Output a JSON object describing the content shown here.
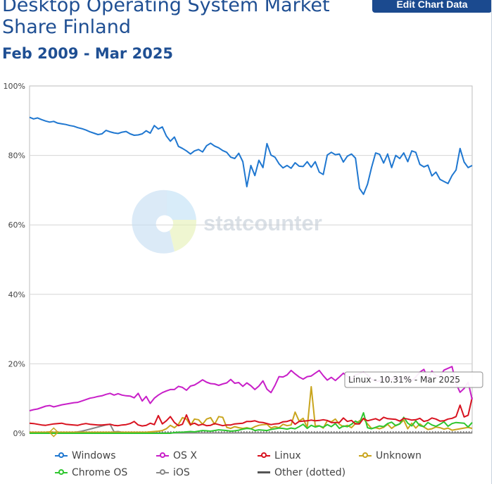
{
  "header": {
    "title": "Desktop Operating System Market Share Finland",
    "subtitle": "Feb 2009 - Mar 2025",
    "edit_button_label": "Edit Chart Data"
  },
  "watermark": {
    "text": "statcounter"
  },
  "tooltip": {
    "text": "Linux - 10.31% - Mar 2025"
  },
  "chart_data": {
    "type": "line",
    "x_start": "Feb 2009",
    "x_end": "Mar 2025",
    "y_ticks": [
      "100%",
      "80%",
      "60%",
      "40%",
      "20%",
      "0%"
    ],
    "ylim": [
      0,
      100
    ],
    "grid": true,
    "legend_position": "bottom",
    "series": [
      {
        "name": "Windows",
        "color": "#1f77d0",
        "values": [
          91,
          90.5,
          90.8,
          90.3,
          89.9,
          89.6,
          89.8,
          89.3,
          89.1,
          88.9,
          88.6,
          88.4,
          88,
          87.7,
          87.3,
          86.8,
          86.4,
          86,
          86.2,
          87.2,
          86.8,
          86.5,
          86.3,
          86.7,
          86.9,
          86.2,
          85.8,
          85.9,
          86.2,
          87.1,
          86.4,
          88.6,
          87.6,
          88.2,
          85.6,
          84.1,
          85.3,
          82.6,
          82,
          81.3,
          80.4,
          81.3,
          81.7,
          81,
          82.8,
          83.5,
          82.7,
          82.2,
          81.4,
          80.9,
          79.5,
          79.1,
          80.6,
          78.2,
          71,
          77.1,
          74.2,
          78.6,
          76.5,
          83.4,
          80.1,
          79.5,
          77.6,
          76.4,
          77.1,
          76.3,
          77.9,
          76.9,
          76.8,
          78.2,
          76.6,
          78.2,
          75.2,
          74.5,
          80.1,
          80.9,
          80.2,
          80.4,
          78.1,
          79.8,
          80.4,
          79.2,
          70.5,
          68.8,
          71.7,
          76.5,
          80.7,
          80.3,
          77.8,
          80.4,
          76.5,
          80,
          79.1,
          80.7,
          78.2,
          81.3,
          80.9,
          77.4,
          76.7,
          77.2,
          74.1,
          75.2,
          73.1,
          72.5,
          71.9,
          74.2,
          75.8,
          82,
          78.1,
          76.5,
          77.1
        ]
      },
      {
        "name": "OS X",
        "color": "#c81fc8",
        "values": [
          6.5,
          6.8,
          7,
          7.4,
          7.8,
          8,
          7.6,
          7.9,
          8.2,
          8.4,
          8.6,
          8.8,
          8.9,
          9.3,
          9.7,
          10.1,
          10.3,
          10.6,
          10.8,
          11.2,
          11.5,
          11,
          11.4,
          11,
          10.8,
          10.7,
          10.2,
          11.5,
          9.3,
          10.6,
          8.6,
          10.1,
          11,
          11.7,
          12.2,
          12.6,
          12.6,
          13.5,
          13.2,
          12.4,
          13.6,
          13.9,
          14.6,
          15.4,
          14.7,
          14.3,
          14.2,
          13.8,
          14.2,
          14.5,
          15.5,
          14.4,
          14.6,
          13.5,
          14.5,
          13.7,
          12.6,
          13.6,
          15.1,
          12.7,
          11.7,
          13.8,
          16.3,
          16.2,
          16.8,
          18.1,
          17.1,
          16.2,
          15.6,
          16.3,
          16.5,
          17.3,
          18.1,
          16.6,
          15.3,
          16.1,
          15.2,
          16.2,
          17.3,
          16.3,
          15.5,
          16.8,
          17.2,
          17.6,
          16.8,
          15.6,
          14.9,
          15.1,
          15.6,
          16.3,
          15.3,
          16.6,
          15.2,
          15.8,
          16.5,
          15.1,
          16.2,
          17.6,
          18.4,
          15.8,
          17.9,
          16.6,
          16.4,
          18.2,
          18.7,
          19.2,
          14.3,
          11.8,
          12.9,
          14.7,
          9.7
        ]
      },
      {
        "name": "Linux",
        "color": "#d8121f",
        "values": [
          2.9,
          2.8,
          2.6,
          2.4,
          2.3,
          2.5,
          2.7,
          2.8,
          2.9,
          2.6,
          2.5,
          2.4,
          2.3,
          2.6,
          2.8,
          2.6,
          2.5,
          2.4,
          2.4,
          2.5,
          2.6,
          2.3,
          2.2,
          2.4,
          2.5,
          2.8,
          3.4,
          2.4,
          2.1,
          2.3,
          2.9,
          2.5,
          5.1,
          2.7,
          3.6,
          4.8,
          3.1,
          2.2,
          2.6,
          5.3,
          2.5,
          2.9,
          2.3,
          2.6,
          2.2,
          2.3,
          2.8,
          2.5,
          2.2,
          2.4,
          2.4,
          2.7,
          2.8,
          2.9,
          3.4,
          3.4,
          3.6,
          3.2,
          3.1,
          2.8,
          2.5,
          2.7,
          2.8,
          3.3,
          3.4,
          3.8,
          2.6,
          3.4,
          3.5,
          3.6,
          3.8,
          3.6,
          3.7,
          3.9,
          3.7,
          3.1,
          3.1,
          3.1,
          4.4,
          3.4,
          3.7,
          2.7,
          2.7,
          4.3,
          3.6,
          3.9,
          4.2,
          3.7,
          4.6,
          4.2,
          4.1,
          4,
          3.5,
          4.3,
          4.1,
          3.8,
          3.9,
          4.3,
          3.4,
          3.7,
          4.4,
          4.1,
          3.5,
          3.6,
          4.1,
          4.3,
          4.8,
          8.1,
          4.7,
          5.2,
          10.31
        ]
      },
      {
        "name": "Unknown",
        "color": "#c9a51e",
        "values": [
          0.3,
          0.3,
          0.3,
          0.3,
          0.3,
          0.4,
          0.3,
          0.3,
          0.3,
          0.3,
          0.3,
          0.3,
          0.3,
          0.3,
          0.3,
          0.3,
          0.3,
          0.3,
          0.3,
          0.3,
          0.3,
          0.3,
          0.3,
          0.3,
          0.3,
          0.3,
          0.3,
          0.3,
          0.3,
          0.3,
          0.4,
          0.5,
          0.6,
          0.8,
          1.3,
          2.3,
          1.6,
          2.6,
          4.5,
          4.1,
          2.3,
          4.1,
          3.9,
          2.6,
          4.1,
          4.5,
          2.6,
          4.8,
          4.6,
          1.7,
          1.4,
          1.9,
          1.6,
          1.4,
          1.6,
          1.3,
          1.9,
          2.3,
          2.5,
          2.6,
          1.5,
          1.9,
          1.6,
          2.6,
          2.2,
          2.4,
          6.1,
          3.5,
          4.3,
          1.6,
          13.4,
          2.1,
          2.2,
          1.5,
          3.6,
          3.3,
          4.1,
          2.6,
          1.9,
          2.3,
          1.6,
          2.8,
          3.6,
          4.2,
          2.7,
          1.4,
          1.6,
          1.3,
          1.7,
          2.6,
          1.4,
          2.3,
          2.7,
          3.8,
          1.3,
          2.9,
          1.5,
          2.7,
          1.8,
          1.1,
          1.3,
          1.8,
          1.6,
          1.2,
          1.5,
          0.9,
          1.1,
          1.3,
          1.5,
          1.7,
          1.4
        ]
      },
      {
        "name": "Chrome OS",
        "color": "#2fc62f",
        "values": [
          0,
          0,
          0,
          0,
          0,
          0,
          0,
          0,
          0,
          0,
          0,
          0,
          0,
          0,
          0,
          0,
          0,
          0,
          0,
          0,
          0,
          0,
          0,
          0,
          0,
          0,
          0,
          0,
          0,
          0,
          0,
          0,
          0,
          0,
          0,
          0,
          0.2,
          0.3,
          0.3,
          0.4,
          0.5,
          0.4,
          0.6,
          0.8,
          0.7,
          0.6,
          0.8,
          1,
          0.9,
          0.8,
          0.6,
          0.7,
          0.9,
          1.2,
          1.4,
          1.3,
          0.8,
          1,
          0.9,
          0.8,
          1.1,
          1.3,
          1.5,
          1.4,
          1.2,
          1.5,
          1.3,
          1.9,
          2.6,
          1.4,
          2.3,
          1.8,
          2.1,
          1.7,
          2.5,
          1.9,
          2.8,
          1.4,
          2.1,
          1.9,
          2.6,
          3.5,
          2.9,
          5.9,
          1.6,
          1.3,
          1.7,
          2.1,
          1.9,
          2.8,
          3.2,
          2.2,
          2.7,
          4.6,
          2.9,
          2.1,
          3.6,
          2.2,
          1.9,
          3.1,
          2.4,
          2,
          2.6,
          3.3,
          2,
          2.8,
          3.1,
          3,
          2.9,
          1.8,
          3.1
        ]
      },
      {
        "name": "iOS",
        "color": "#888888",
        "values": [
          0,
          0,
          0,
          0,
          0,
          0,
          0,
          0,
          0,
          0,
          0.2,
          0.3,
          0.4,
          0.6,
          0.9,
          1.2,
          1.5,
          1.8,
          2.1,
          2.4,
          2.6,
          0.4,
          0.5,
          0.3,
          0.3,
          0.3,
          0.2,
          0.2,
          0.2,
          0.1,
          0.1,
          0.1,
          0.1,
          0.1,
          0.1,
          0.1,
          0.1,
          0.1,
          0.1,
          0.1,
          0.1,
          0.1,
          0.1,
          0.1,
          0.1,
          0.1,
          0.1,
          0.1,
          0.1,
          0.1,
          0.1,
          0.1,
          0.1,
          0.1,
          0.1,
          0.1,
          0.1,
          0.1,
          0.1,
          0.1,
          0.1,
          0.1,
          0.1,
          0.1,
          0.1,
          0.1,
          0.1,
          0.1,
          0.1,
          0.1,
          0.1,
          0.1,
          0.1,
          0.1,
          0.1,
          0.1,
          0.1,
          0.1,
          0.1,
          0.1,
          0.1,
          0.1,
          0.1,
          0.1,
          0.1,
          0.1,
          0.1,
          0.1,
          0.1,
          0.1,
          0.1,
          0.1,
          0.1,
          0.1,
          0.1,
          0.1,
          0.1,
          0.1,
          0.1,
          0.1,
          0.1,
          0.1,
          0.1,
          0.1,
          0.1,
          0.1,
          0.1,
          0.1,
          0.1,
          0.1,
          0.1
        ]
      },
      {
        "name": "Other (dotted)",
        "color": "#555555",
        "dotted": true,
        "values": [
          0.3,
          0.3,
          0.3,
          0.3,
          0.3,
          0.3,
          0.3,
          0.3,
          0.3,
          0.3,
          0.3,
          0.3,
          0.3,
          0.3,
          0.3,
          0.3,
          0.3,
          0.3,
          0.3,
          0.3,
          0.3,
          0.3,
          0.3,
          0.3,
          0.3,
          0.3,
          0.3,
          0.3,
          0.3,
          0.3,
          0.3,
          0.3,
          0.3,
          0.3,
          0.3,
          0.3,
          0.3,
          0.3,
          0.3,
          0.3,
          0.3,
          0.3,
          0.3,
          0.3,
          0.3,
          0.3,
          0.3,
          0.3,
          0.3,
          0.3,
          0.3,
          0.3,
          0.3,
          0.3,
          0.3,
          0.3,
          0.3,
          0.3,
          0.3,
          0.3,
          0.3,
          0.3,
          0.3,
          0.3,
          0.3,
          0.3,
          0.3,
          0.3,
          0.3,
          0.3,
          0.3,
          0.3,
          0.3,
          0.3,
          0.3,
          0.3,
          0.3,
          0.3,
          0.3,
          0.3,
          0.3,
          0.3,
          0.3,
          0.3,
          0.3,
          0.3,
          0.3,
          0.3,
          0.3,
          0.3,
          0.3,
          0.3,
          0.3,
          0.3,
          0.3,
          0.3,
          0.3,
          0.3,
          0.3,
          0.3,
          0.3,
          0.3,
          0.3,
          0.3,
          0.3,
          0.3,
          0.3,
          0.3,
          0.3,
          0.3,
          0.3
        ]
      }
    ]
  },
  "legend": [
    {
      "label": "Windows",
      "color": "#1f77d0",
      "symbol": "ring-line"
    },
    {
      "label": "OS X",
      "color": "#c81fc8",
      "symbol": "ring-line"
    },
    {
      "label": "Linux",
      "color": "#d8121f",
      "symbol": "ring-line"
    },
    {
      "label": "Unknown",
      "color": "#c9a51e",
      "symbol": "ring-line"
    },
    {
      "label": "Chrome OS",
      "color": "#2fc62f",
      "symbol": "ring-line"
    },
    {
      "label": "iOS",
      "color": "#888888",
      "symbol": "ring-line"
    },
    {
      "label": "Other (dotted)",
      "color": "#555555",
      "symbol": "bar"
    }
  ]
}
